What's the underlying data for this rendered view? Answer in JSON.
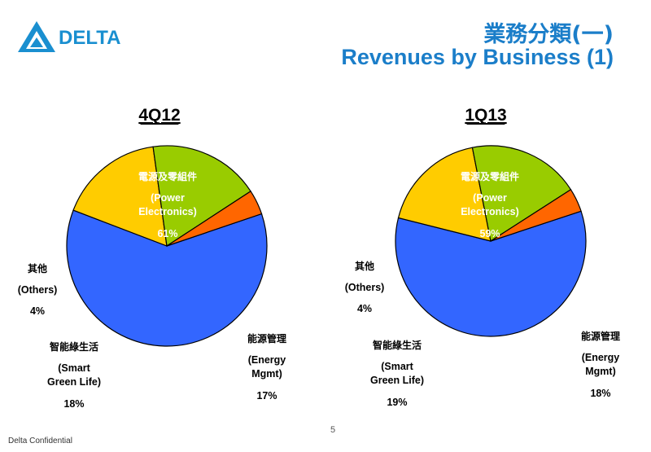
{
  "header": {
    "logo_text": "DELTA",
    "title_zh": "業務分類(一)",
    "title_en": "Revenues by Business (1)"
  },
  "footer": {
    "confidential": "Delta Confidential",
    "page_number": "5"
  },
  "colors": {
    "power_electronics": "#3366ff",
    "energy_mgmt": "#ffcc00",
    "smart_green_life": "#99cc00",
    "others": "#ff6600",
    "title": "#1b7ec9",
    "logo": "#1a8fd0"
  },
  "chart_data": [
    {
      "type": "pie",
      "title": "4Q12",
      "slices": [
        {
          "name_zh": "電源及零組件",
          "name_en_1": "(Power",
          "name_en_2": "Electronics)",
          "pct_label": "61%",
          "value": 61
        },
        {
          "name_zh": "能源管理",
          "name_en_1": "(Energy",
          "name_en_2": "Mgmt)",
          "pct_label": "17%",
          "value": 17
        },
        {
          "name_zh": "智能綠生活",
          "name_en_1": "(Smart",
          "name_en_2": "Green Life)",
          "pct_label": "18%",
          "value": 18
        },
        {
          "name_zh": "其他",
          "name_en_1": "(Others)",
          "name_en_2": "",
          "pct_label": "4%",
          "value": 4
        }
      ]
    },
    {
      "type": "pie",
      "title": "1Q13",
      "slices": [
        {
          "name_zh": "電源及零組件",
          "name_en_1": "(Power",
          "name_en_2": "Electronics)",
          "pct_label": "59%",
          "value": 59
        },
        {
          "name_zh": "能源管理",
          "name_en_1": "(Energy",
          "name_en_2": "Mgmt)",
          "pct_label": "18%",
          "value": 18
        },
        {
          "name_zh": "智能綠生活",
          "name_en_1": "(Smart",
          "name_en_2": "Green Life)",
          "pct_label": "19%",
          "value": 19
        },
        {
          "name_zh": "其他",
          "name_en_1": "(Others)",
          "name_en_2": "",
          "pct_label": "4%",
          "value": 4
        }
      ]
    }
  ]
}
